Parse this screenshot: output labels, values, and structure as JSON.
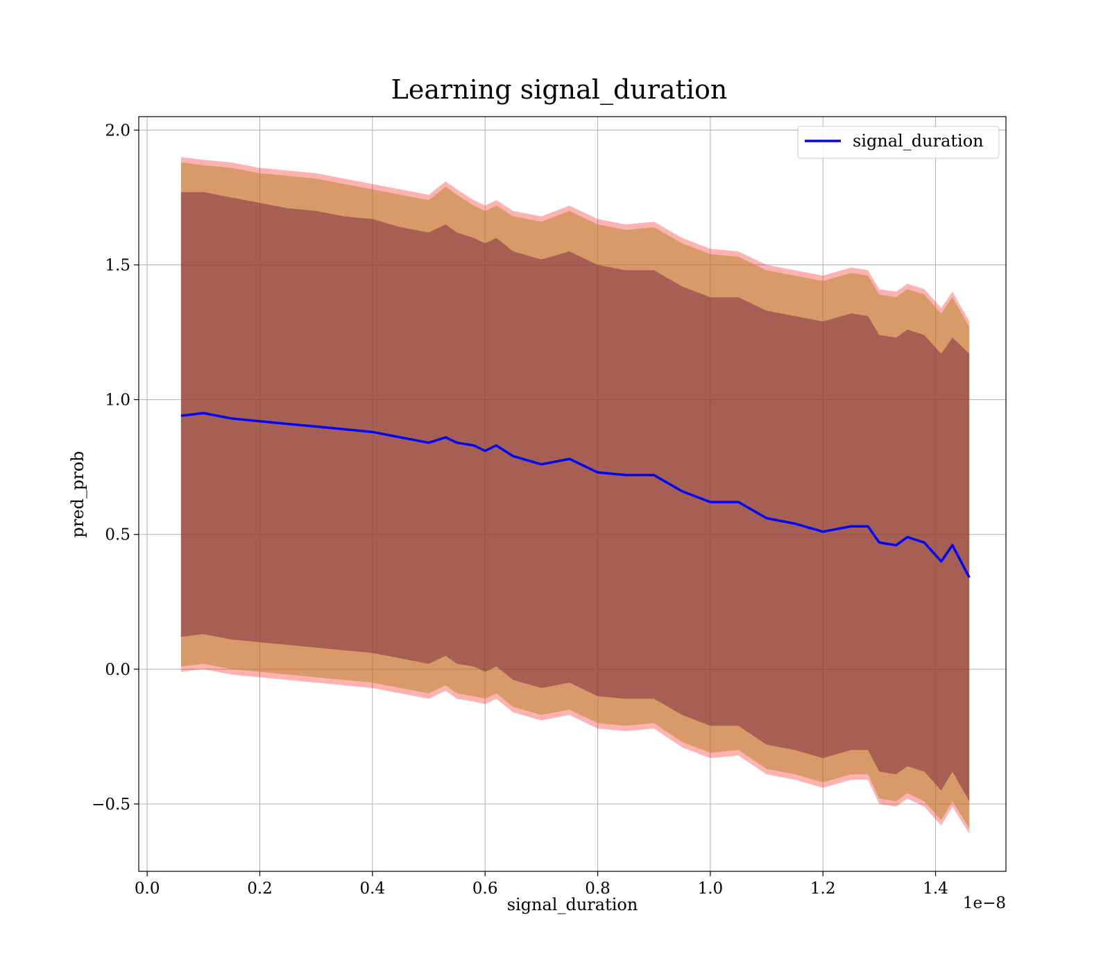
{
  "chart_data": {
    "type": "line",
    "title": "Learning signal_duration",
    "xlabel": "signal_duration",
    "ylabel": "pred_prob",
    "x_offset_text": "1e−8",
    "xlim": [
      -0.015,
      1.525
    ],
    "ylim": [
      -0.75,
      2.05
    ],
    "x_ticks": [
      0.0,
      0.2,
      0.4,
      0.6,
      0.8,
      1.0,
      1.2,
      1.4
    ],
    "x_tick_labels": [
      "0.0",
      "0.2",
      "0.4",
      "0.6",
      "0.8",
      "1.0",
      "1.2",
      "1.4"
    ],
    "y_ticks": [
      -0.5,
      0.0,
      0.5,
      1.0,
      1.5,
      2.0
    ],
    "y_tick_labels": [
      "−0.5",
      "0.0",
      "0.5",
      "1.0",
      "1.5",
      "2.0"
    ],
    "grid": true,
    "legend_position": "upper-right",
    "colors": {
      "line": "#0000ff",
      "outer_band": "#ff0000",
      "middle_band": "#b8862e",
      "inner_band": "#6a1b3a",
      "grid": "#b0b0b0"
    },
    "series": [
      {
        "name": "signal_duration",
        "x": [
          0.06,
          0.1,
          0.15,
          0.2,
          0.25,
          0.3,
          0.35,
          0.4,
          0.45,
          0.5,
          0.53,
          0.55,
          0.58,
          0.6,
          0.62,
          0.65,
          0.7,
          0.75,
          0.8,
          0.85,
          0.9,
          0.95,
          1.0,
          1.05,
          1.1,
          1.15,
          1.2,
          1.25,
          1.28,
          1.3,
          1.33,
          1.35,
          1.38,
          1.41,
          1.43,
          1.46
        ],
        "y": [
          0.94,
          0.95,
          0.93,
          0.92,
          0.91,
          0.9,
          0.89,
          0.88,
          0.86,
          0.84,
          0.86,
          0.84,
          0.83,
          0.81,
          0.83,
          0.79,
          0.76,
          0.78,
          0.73,
          0.72,
          0.72,
          0.66,
          0.62,
          0.62,
          0.56,
          0.54,
          0.51,
          0.53,
          0.53,
          0.47,
          0.46,
          0.49,
          0.47,
          0.4,
          0.46,
          0.34
        ]
      }
    ],
    "bands": [
      {
        "level": "outer",
        "x": [
          0.06,
          0.1,
          0.15,
          0.2,
          0.25,
          0.3,
          0.35,
          0.4,
          0.45,
          0.5,
          0.53,
          0.55,
          0.58,
          0.6,
          0.62,
          0.65,
          0.7,
          0.75,
          0.8,
          0.85,
          0.9,
          0.95,
          1.0,
          1.05,
          1.1,
          1.15,
          1.2,
          1.25,
          1.28,
          1.3,
          1.33,
          1.35,
          1.38,
          1.41,
          1.43,
          1.46
        ],
        "upper": [
          1.9,
          1.89,
          1.88,
          1.86,
          1.85,
          1.84,
          1.82,
          1.8,
          1.78,
          1.76,
          1.81,
          1.78,
          1.74,
          1.72,
          1.74,
          1.7,
          1.68,
          1.72,
          1.67,
          1.65,
          1.66,
          1.6,
          1.56,
          1.55,
          1.5,
          1.48,
          1.46,
          1.49,
          1.48,
          1.41,
          1.4,
          1.43,
          1.41,
          1.34,
          1.4,
          1.29
        ],
        "lower": [
          -0.01,
          0.0,
          -0.02,
          -0.03,
          -0.04,
          -0.05,
          -0.06,
          -0.07,
          -0.09,
          -0.11,
          -0.08,
          -0.11,
          -0.12,
          -0.13,
          -0.11,
          -0.16,
          -0.19,
          -0.17,
          -0.22,
          -0.23,
          -0.22,
          -0.29,
          -0.33,
          -0.32,
          -0.39,
          -0.41,
          -0.44,
          -0.41,
          -0.41,
          -0.5,
          -0.51,
          -0.48,
          -0.51,
          -0.58,
          -0.51,
          -0.61
        ]
      },
      {
        "level": "middle",
        "x": [
          0.06,
          0.1,
          0.15,
          0.2,
          0.25,
          0.3,
          0.35,
          0.4,
          0.45,
          0.5,
          0.53,
          0.55,
          0.58,
          0.6,
          0.62,
          0.65,
          0.7,
          0.75,
          0.8,
          0.85,
          0.9,
          0.95,
          1.0,
          1.05,
          1.1,
          1.15,
          1.2,
          1.25,
          1.28,
          1.3,
          1.33,
          1.35,
          1.38,
          1.41,
          1.43,
          1.46
        ],
        "upper": [
          1.88,
          1.87,
          1.86,
          1.84,
          1.83,
          1.82,
          1.8,
          1.78,
          1.76,
          1.74,
          1.79,
          1.76,
          1.72,
          1.7,
          1.72,
          1.68,
          1.66,
          1.7,
          1.65,
          1.63,
          1.64,
          1.58,
          1.54,
          1.53,
          1.48,
          1.46,
          1.44,
          1.47,
          1.46,
          1.39,
          1.38,
          1.41,
          1.39,
          1.32,
          1.38,
          1.27
        ],
        "lower": [
          0.01,
          0.02,
          0.0,
          -0.01,
          -0.02,
          -0.03,
          -0.04,
          -0.05,
          -0.07,
          -0.09,
          -0.06,
          -0.09,
          -0.1,
          -0.11,
          -0.09,
          -0.14,
          -0.17,
          -0.15,
          -0.2,
          -0.21,
          -0.2,
          -0.27,
          -0.31,
          -0.3,
          -0.37,
          -0.39,
          -0.42,
          -0.39,
          -0.39,
          -0.48,
          -0.49,
          -0.46,
          -0.49,
          -0.56,
          -0.49,
          -0.59
        ]
      },
      {
        "level": "inner",
        "x": [
          0.06,
          0.1,
          0.15,
          0.2,
          0.25,
          0.3,
          0.35,
          0.4,
          0.45,
          0.5,
          0.53,
          0.55,
          0.58,
          0.6,
          0.62,
          0.65,
          0.7,
          0.75,
          0.8,
          0.85,
          0.9,
          0.95,
          1.0,
          1.05,
          1.1,
          1.15,
          1.2,
          1.25,
          1.28,
          1.3,
          1.33,
          1.35,
          1.38,
          1.41,
          1.43,
          1.46
        ],
        "upper": [
          1.77,
          1.77,
          1.75,
          1.73,
          1.71,
          1.7,
          1.68,
          1.67,
          1.64,
          1.62,
          1.65,
          1.62,
          1.6,
          1.58,
          1.6,
          1.55,
          1.52,
          1.55,
          1.5,
          1.48,
          1.48,
          1.42,
          1.38,
          1.38,
          1.33,
          1.31,
          1.29,
          1.32,
          1.31,
          1.24,
          1.23,
          1.26,
          1.24,
          1.17,
          1.23,
          1.17
        ],
        "lower": [
          0.12,
          0.13,
          0.11,
          0.1,
          0.09,
          0.08,
          0.07,
          0.06,
          0.04,
          0.02,
          0.05,
          0.02,
          0.01,
          -0.01,
          0.01,
          -0.04,
          -0.07,
          -0.05,
          -0.1,
          -0.11,
          -0.11,
          -0.17,
          -0.21,
          -0.21,
          -0.28,
          -0.3,
          -0.33,
          -0.3,
          -0.3,
          -0.38,
          -0.39,
          -0.36,
          -0.38,
          -0.45,
          -0.38,
          -0.49
        ]
      }
    ]
  }
}
